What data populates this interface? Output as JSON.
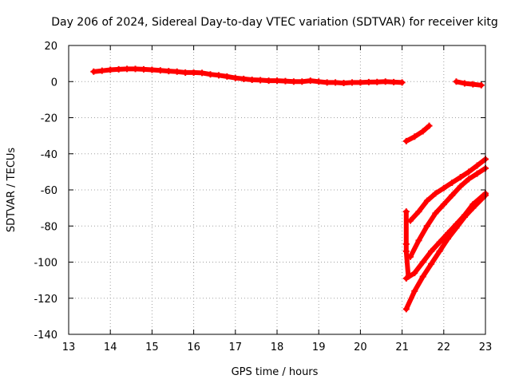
{
  "chart_data": {
    "type": "scatter",
    "title": "Day 206 of 2024, Sidereal Day-to-day VTEC variation (SDTVAR) for receiver kitg",
    "xlabel": "GPS time / hours",
    "ylabel": "SDTVAR / TECUs",
    "xlim": [
      13,
      23
    ],
    "ylim": [
      -140,
      20
    ],
    "xticks": [
      13,
      14,
      15,
      16,
      17,
      18,
      19,
      20,
      21,
      22,
      23
    ],
    "yticks": [
      20,
      0,
      -20,
      -40,
      -60,
      -80,
      -100,
      -120,
      -140
    ],
    "grid": true,
    "marker": "plus",
    "color": "#ff0000",
    "series": [
      {
        "points": [
          [
            13.6,
            5.5
          ],
          [
            13.8,
            6.0
          ],
          [
            14.0,
            6.5
          ],
          [
            14.2,
            6.8
          ],
          [
            14.4,
            7.0
          ],
          [
            14.6,
            7.0
          ],
          [
            14.8,
            6.8
          ],
          [
            15.0,
            6.5
          ],
          [
            15.2,
            6.2
          ],
          [
            15.4,
            5.8
          ],
          [
            15.6,
            5.5
          ],
          [
            15.8,
            5.0
          ],
          [
            16.0,
            5.0
          ],
          [
            16.2,
            4.8
          ],
          [
            16.4,
            4.0
          ],
          [
            16.6,
            3.5
          ],
          [
            16.8,
            2.8
          ],
          [
            17.0,
            2.0
          ],
          [
            17.2,
            1.5
          ],
          [
            17.4,
            1.0
          ],
          [
            17.6,
            0.8
          ],
          [
            17.8,
            0.5
          ],
          [
            18.0,
            0.5
          ],
          [
            18.2,
            0.3
          ],
          [
            18.4,
            0.0
          ],
          [
            18.6,
            0.0
          ],
          [
            18.8,
            0.5
          ],
          [
            19.0,
            0.0
          ],
          [
            19.2,
            -0.5
          ],
          [
            19.4,
            -0.5
          ],
          [
            19.6,
            -0.8
          ],
          [
            19.8,
            -0.5
          ],
          [
            20.0,
            -0.5
          ],
          [
            20.2,
            -0.3
          ],
          [
            20.4,
            -0.2
          ],
          [
            20.6,
            0.0
          ],
          [
            20.8,
            -0.3
          ],
          [
            21.0,
            -0.5
          ]
        ]
      },
      {
        "points": [
          [
            22.3,
            0.0
          ],
          [
            22.5,
            -1.0
          ],
          [
            22.7,
            -1.5
          ],
          [
            22.9,
            -2.0
          ]
        ]
      },
      {
        "points": [
          [
            21.1,
            -33.0
          ],
          [
            21.3,
            -30.5
          ],
          [
            21.5,
            -27.5
          ],
          [
            21.65,
            -24.5
          ]
        ]
      },
      {
        "points": [
          [
            21.2,
            -77.0
          ],
          [
            21.4,
            -72.0
          ],
          [
            21.6,
            -66.0
          ],
          [
            21.8,
            -62.0
          ],
          [
            22.0,
            -59.0
          ],
          [
            22.2,
            -56.0
          ],
          [
            22.4,
            -53.0
          ],
          [
            22.6,
            -50.0
          ],
          [
            22.8,
            -46.5
          ],
          [
            23.0,
            -43.0
          ]
        ]
      },
      {
        "points": [
          [
            21.2,
            -97.0
          ],
          [
            21.4,
            -88.0
          ],
          [
            21.6,
            -80.0
          ],
          [
            21.8,
            -73.0
          ],
          [
            22.0,
            -68.0
          ],
          [
            22.2,
            -63.0
          ],
          [
            22.4,
            -58.0
          ],
          [
            22.6,
            -54.0
          ],
          [
            22.8,
            -51.0
          ],
          [
            23.0,
            -48.0
          ]
        ]
      },
      {
        "points": [
          [
            21.1,
            -109.0
          ],
          [
            21.3,
            -106.0
          ],
          [
            21.5,
            -100.0
          ],
          [
            21.7,
            -94.0
          ],
          [
            21.9,
            -89.0
          ],
          [
            22.1,
            -84.0
          ],
          [
            22.3,
            -79.0
          ],
          [
            22.5,
            -74.0
          ],
          [
            22.7,
            -68.0
          ],
          [
            23.0,
            -62.0
          ]
        ]
      },
      {
        "points": [
          [
            21.1,
            -126.0
          ],
          [
            21.3,
            -116.0
          ],
          [
            21.5,
            -108.0
          ],
          [
            21.7,
            -101.0
          ],
          [
            21.9,
            -94.0
          ],
          [
            22.1,
            -87.0
          ],
          [
            22.3,
            -81.0
          ],
          [
            22.5,
            -75.0
          ],
          [
            22.7,
            -70.0
          ],
          [
            23.0,
            -63.0
          ]
        ]
      },
      {
        "points": [
          [
            21.1,
            -72.0
          ],
          [
            21.1,
            -90.0
          ],
          [
            21.1,
            -94.0
          ],
          [
            21.15,
            -108.0
          ]
        ]
      }
    ]
  }
}
